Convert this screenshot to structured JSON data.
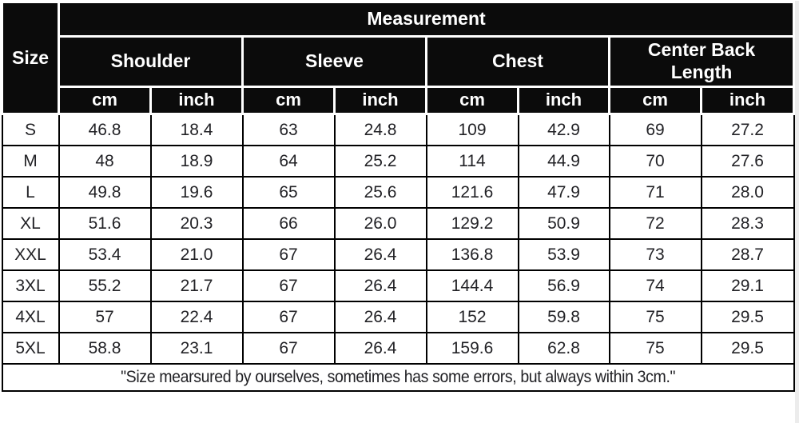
{
  "chart_data": {
    "type": "table",
    "title": "Measurement",
    "corner_header": "Size",
    "column_groups": [
      "Shoulder",
      "Sleeve",
      "Chest",
      "Center Back Length"
    ],
    "unit_row": [
      "cm",
      "inch",
      "cm",
      "inch",
      "cm",
      "inch",
      "cm",
      "inch"
    ],
    "row_labels": [
      "S",
      "M",
      "L",
      "XL",
      "XXL",
      "3XL",
      "4XL",
      "5XL"
    ],
    "rows": [
      [
        "46.8",
        "18.4",
        "63",
        "24.8",
        "109",
        "42.9",
        "69",
        "27.2"
      ],
      [
        "48",
        "18.9",
        "64",
        "25.2",
        "114",
        "44.9",
        "70",
        "27.6"
      ],
      [
        "49.8",
        "19.6",
        "65",
        "25.6",
        "121.6",
        "47.9",
        "71",
        "28.0"
      ],
      [
        "51.6",
        "20.3",
        "66",
        "26.0",
        "129.2",
        "50.9",
        "72",
        "28.3"
      ],
      [
        "53.4",
        "21.0",
        "67",
        "26.4",
        "136.8",
        "53.9",
        "73",
        "28.7"
      ],
      [
        "55.2",
        "21.7",
        "67",
        "26.4",
        "144.4",
        "56.9",
        "74",
        "29.1"
      ],
      [
        "57",
        "22.4",
        "67",
        "26.4",
        "152",
        "59.8",
        "75",
        "29.5"
      ],
      [
        "58.8",
        "23.1",
        "67",
        "26.4",
        "159.6",
        "62.8",
        "75",
        "29.5"
      ]
    ],
    "footnote": "\"Size mearsured by ourselves, sometimes has some errors, but always within 3cm.\"",
    "layout_hints": {
      "header_rows": 3,
      "units_per_group": 2,
      "footnote_spans_all_columns": true
    }
  },
  "colors": {
    "header_bg": "#0b0b0b",
    "header_text": "#ffffff",
    "header_grid": "#ffffff",
    "body_bg": "#ffffff",
    "body_text": "#222226",
    "body_grid": "#000000"
  }
}
